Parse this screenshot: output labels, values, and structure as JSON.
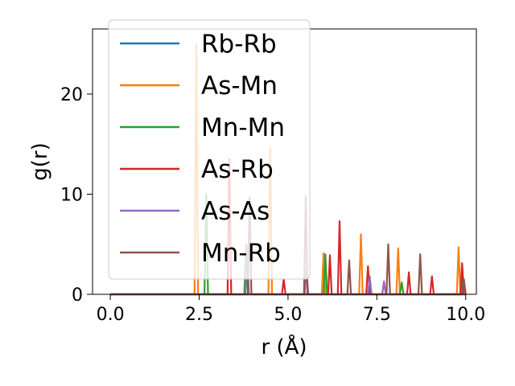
{
  "chart_data": {
    "type": "line",
    "title": "",
    "xlabel": "r (Å)",
    "ylabel": "g(r)",
    "xlim": [
      -0.5,
      10.3
    ],
    "ylim": [
      0,
      26.5
    ],
    "xticks": [
      0.0,
      2.5,
      5.0,
      7.5,
      10.0
    ],
    "xtick_labels": [
      "0.0",
      "2.5",
      "5.0",
      "7.5",
      "10.0"
    ],
    "yticks": [
      0,
      10,
      20
    ],
    "ytick_labels": [
      "0",
      "10",
      "20"
    ],
    "grid": false,
    "legend_position": "upper-left",
    "series": [
      {
        "name": "Rb-Rb",
        "color": "#1f77b4",
        "peaks": []
      },
      {
        "name": "As-Mn",
        "color": "#ff7f0e",
        "peaks": [
          [
            2.42,
            25.0
          ],
          [
            4.5,
            14.6
          ],
          [
            6.0,
            4.1
          ],
          [
            7.05,
            6.0
          ],
          [
            8.1,
            4.6
          ],
          [
            9.8,
            4.7
          ]
        ]
      },
      {
        "name": "Mn-Mn",
        "color": "#2ca02c",
        "peaks": [
          [
            2.7,
            10.0
          ],
          [
            3.82,
            5.0
          ],
          [
            6.05,
            4.0
          ],
          [
            8.2,
            1.2
          ],
          [
            9.9,
            1.4
          ]
        ]
      },
      {
        "name": "As-Rb",
        "color": "#d62728",
        "peaks": [
          [
            3.35,
            13.5
          ],
          [
            4.88,
            1.5
          ],
          [
            6.18,
            3.9
          ],
          [
            6.45,
            7.3
          ],
          [
            7.25,
            2.8
          ],
          [
            8.4,
            2.2
          ],
          [
            9.05,
            1.8
          ],
          [
            9.9,
            3.1
          ]
        ]
      },
      {
        "name": "As-As",
        "color": "#9467bd",
        "peaks": [
          [
            3.85,
            4.8
          ],
          [
            5.52,
            2.4
          ],
          [
            7.3,
            1.8
          ],
          [
            7.7,
            1.3
          ]
        ]
      },
      {
        "name": "Mn-Rb",
        "color": "#8c564b",
        "peaks": [
          [
            3.92,
            9.7
          ],
          [
            5.5,
            9.8
          ],
          [
            6.72,
            3.4
          ],
          [
            7.82,
            5.0
          ],
          [
            8.72,
            4.0
          ],
          [
            9.95,
            1.5
          ]
        ]
      }
    ]
  }
}
